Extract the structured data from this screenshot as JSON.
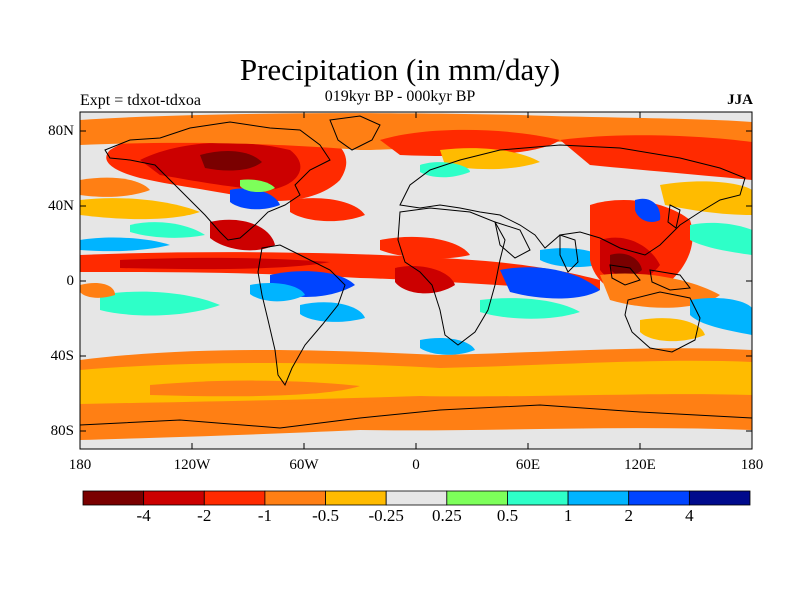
{
  "title": "Precipitation (in mm/day)",
  "experiment": "Expt = tdxot-tdxoa",
  "period": "019kyr BP - 000kyr BP",
  "season": "JJA",
  "lat_labels": [
    "80N",
    "40N",
    "0",
    "40S",
    "80S"
  ],
  "lon_labels": [
    "180",
    "120W",
    "60W",
    "0",
    "60E",
    "120E",
    "180"
  ],
  "colorbar": {
    "labels": [
      "-4",
      "-2",
      "-1",
      "-0.5",
      "-0.25",
      "0.25",
      "0.5",
      "1",
      "2",
      "4"
    ],
    "colors": [
      "#7a0000",
      "#cc0000",
      "#ff2a00",
      "#ff7f14",
      "#ffbb00",
      "#e6e6e6",
      "#7dff5a",
      "#2effc8",
      "#00b4ff",
      "#0044ff",
      "#000a8c"
    ]
  },
  "palette": {
    "land": "#e6e6e6",
    "coast": "#000000"
  }
}
